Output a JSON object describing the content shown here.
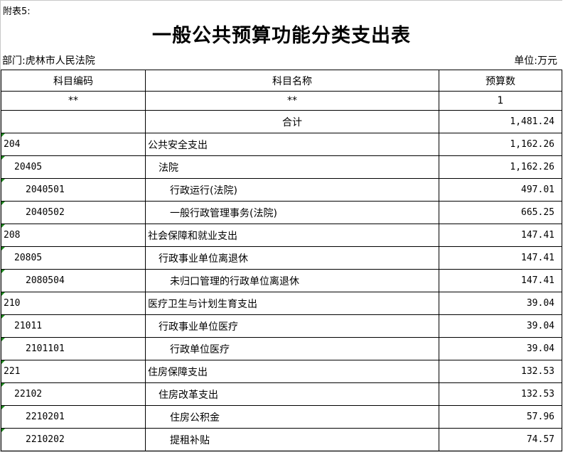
{
  "note": "附表5:",
  "title": "一般公共预算功能分类支出表",
  "department": "部门:虎林市人民法院",
  "unit": "单位:万元",
  "headers": [
    "科目编码",
    "科目名称",
    "预算数"
  ],
  "subheader": [
    "**",
    "**",
    "1"
  ],
  "total": {
    "label": "合计",
    "value": "1,481.24"
  },
  "rows": [
    {
      "code": "204",
      "name": "公共安全支出",
      "value": "1,162.26",
      "level": 0
    },
    {
      "code": "20405",
      "name": "法院",
      "value": "1,162.26",
      "level": 1
    },
    {
      "code": "2040501",
      "name": "行政运行(法院)",
      "value": "497.01",
      "level": 2
    },
    {
      "code": "2040502",
      "name": "一般行政管理事务(法院)",
      "value": "665.25",
      "level": 2
    },
    {
      "code": "208",
      "name": "社会保障和就业支出",
      "value": "147.41",
      "level": 0
    },
    {
      "code": "20805",
      "name": "行政事业单位离退休",
      "value": "147.41",
      "level": 1
    },
    {
      "code": "2080504",
      "name": "未归口管理的行政单位离退休",
      "value": "147.41",
      "level": 2
    },
    {
      "code": "210",
      "name": "医疗卫生与计划生育支出",
      "value": "39.04",
      "level": 0
    },
    {
      "code": "21011",
      "name": "行政事业单位医疗",
      "value": "39.04",
      "level": 1
    },
    {
      "code": "2101101",
      "name": "行政单位医疗",
      "value": "39.04",
      "level": 2
    },
    {
      "code": "221",
      "name": "住房保障支出",
      "value": "132.53",
      "level": 0
    },
    {
      "code": "22102",
      "name": "住房改革支出",
      "value": "132.53",
      "level": 1
    },
    {
      "code": "2210201",
      "name": "住房公积金",
      "value": "57.96",
      "level": 2
    },
    {
      "code": "2210202",
      "name": "提租补贴",
      "value": "74.57",
      "level": 2
    }
  ]
}
